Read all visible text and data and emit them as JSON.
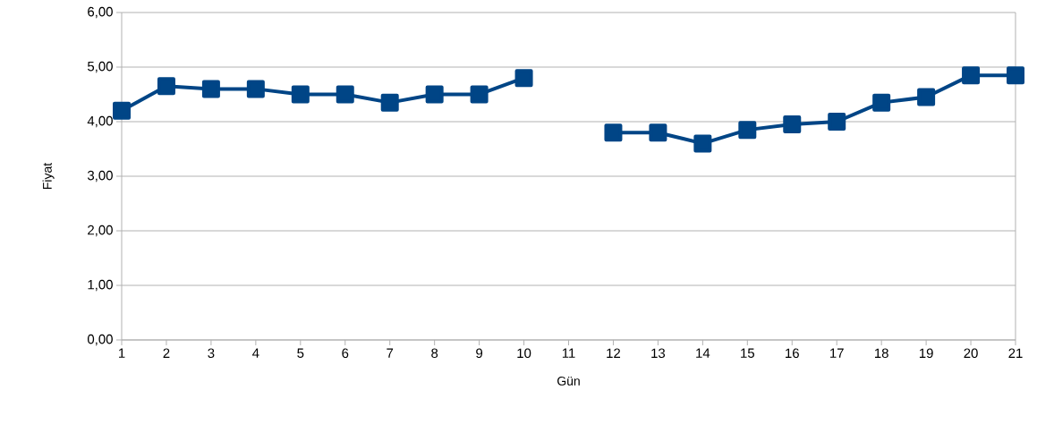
{
  "chart_data": {
    "type": "line",
    "xlabel": "Gün",
    "ylabel": "Fiyat",
    "categories": [
      "1",
      "2",
      "3",
      "4",
      "5",
      "6",
      "7",
      "8",
      "9",
      "10",
      "11",
      "12",
      "13",
      "14",
      "15",
      "16",
      "17",
      "18",
      "19",
      "20",
      "21"
    ],
    "series": [
      {
        "color": "#004586",
        "values": [
          4.2,
          4.65,
          4.6,
          4.6,
          4.5,
          4.5,
          4.35,
          4.5,
          4.5,
          4.8,
          null,
          3.8,
          3.8,
          3.6,
          3.85,
          3.95,
          4.0,
          4.35,
          4.45,
          4.85,
          4.85
        ]
      }
    ],
    "ylim": [
      0,
      6
    ],
    "yticks": [
      {
        "value": 0,
        "label": "0,00"
      },
      {
        "value": 1,
        "label": "1,00"
      },
      {
        "value": 2,
        "label": "2,00"
      },
      {
        "value": 3,
        "label": "3,00"
      },
      {
        "value": 4,
        "label": "4,00"
      },
      {
        "value": 5,
        "label": "5,00"
      },
      {
        "value": 6,
        "label": "6,00"
      }
    ],
    "grid": "y",
    "marker": "square",
    "line_style": "solid"
  }
}
